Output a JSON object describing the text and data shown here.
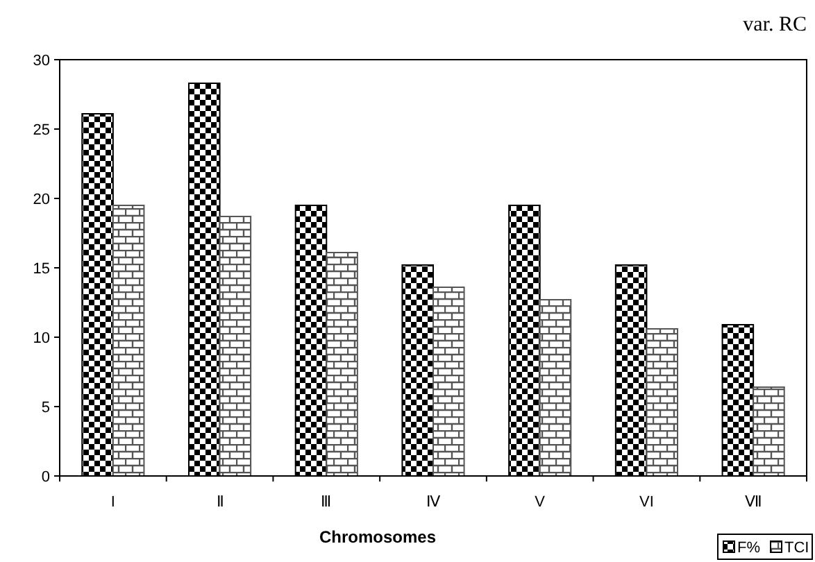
{
  "chart_data": {
    "type": "bar",
    "title": "var. RC",
    "xlabel": "Chromosomes",
    "categories": [
      "I",
      "Ⅱ",
      "Ⅲ",
      "Ⅳ",
      "V",
      "VI",
      "Ⅶ"
    ],
    "series": [
      {
        "name": "F%",
        "color": "#000000",
        "values": [
          26.1,
          28.3,
          19.5,
          15.2,
          19.5,
          15.2,
          10.9
        ]
      },
      {
        "name": "TCI",
        "color": "#555555",
        "values": [
          19.5,
          18.7,
          16.1,
          13.6,
          12.7,
          10.6,
          6.4
        ]
      }
    ],
    "ylim": [
      0,
      30
    ],
    "yticks": [
      0,
      5,
      10,
      15,
      20,
      25,
      30
    ],
    "grid": false,
    "legend": "bottom right"
  }
}
